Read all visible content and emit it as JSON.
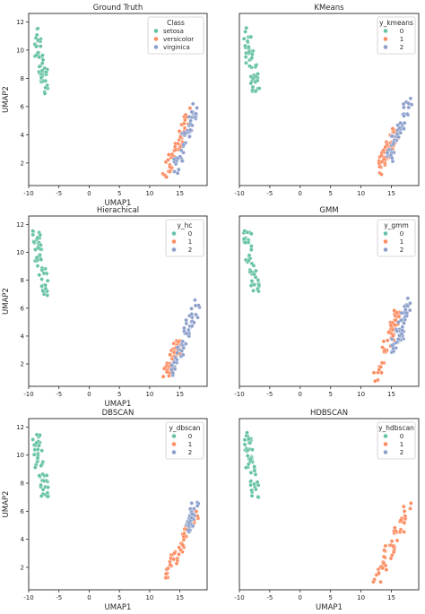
{
  "palette": [
    "#66c2a5",
    "#fc8d62",
    "#8da0cb"
  ],
  "chart_data": [
    {
      "type": "scatter",
      "title": "Ground Truth",
      "xlabel": "UMAP1",
      "ylabel": "UMAP2",
      "xlim": [
        -10,
        19.5
      ],
      "ylim": [
        0.4,
        12.6
      ],
      "xticks": [
        -10,
        -5,
        0,
        5,
        10,
        15
      ],
      "yticks": [
        2,
        4,
        6,
        8,
        10,
        12
      ],
      "legend": {
        "title": "Class",
        "position": "upper right",
        "labels": [
          "setosa",
          "versicolor",
          "virginica"
        ]
      },
      "clusters": [
        {
          "label": "setosa",
          "color": "#66c2a5",
          "range": [
            -8.7,
            11.6,
            -6.9,
            6.9
          ]
        },
        {
          "label": "versicolor",
          "color": "#fc8d62",
          "range": [
            12.5,
            1.1,
            16.6,
            5.6
          ]
        },
        {
          "label": "virginica",
          "color": "#8da0cb",
          "range": [
            14.3,
            1.5,
            18.0,
            6.4
          ]
        }
      ]
    },
    {
      "type": "scatter",
      "title": "KMeans",
      "xlabel": "",
      "ylabel": "",
      "xlim": [
        -10,
        19.5
      ],
      "ylim": [
        0.4,
        12.6
      ],
      "xticks": [
        -10,
        -5,
        0,
        5,
        10,
        15
      ],
      "yticks": [],
      "legend": {
        "title": "y_kmeans",
        "position": "upper right",
        "labels": [
          "0",
          "1",
          "2"
        ]
      },
      "clusters": [
        {
          "label": "0",
          "color": "#66c2a5",
          "range": [
            -8.7,
            11.6,
            -6.9,
            6.9
          ]
        },
        {
          "label": "1",
          "color": "#fc8d62",
          "range": [
            12.5,
            1.1,
            15.8,
            4.4
          ]
        },
        {
          "label": "2",
          "color": "#8da0cb",
          "range": [
            14.6,
            2.4,
            18.0,
            6.4
          ]
        }
      ]
    },
    {
      "type": "scatter",
      "title": "Hierachical",
      "xlabel": "UMAP1",
      "ylabel": "UMAP2",
      "xlim": [
        -10,
        19.5
      ],
      "ylim": [
        0.4,
        12.6
      ],
      "xticks": [
        -10,
        -5,
        0,
        5,
        10,
        15
      ],
      "yticks": [
        2,
        4,
        6,
        8,
        10,
        12
      ],
      "legend": {
        "title": "y_hc",
        "position": "upper right",
        "labels": [
          "0",
          "1",
          "2"
        ]
      },
      "clusters": [
        {
          "label": "0",
          "color": "#66c2a5",
          "range": [
            -8.7,
            11.6,
            -6.9,
            6.9
          ]
        },
        {
          "label": "1",
          "color": "#fc8d62",
          "range": [
            12.5,
            1.1,
            14.9,
            3.6
          ]
        },
        {
          "label": "2",
          "color": "#8da0cb",
          "range": [
            13.8,
            1.6,
            18.0,
            6.4
          ]
        }
      ]
    },
    {
      "type": "scatter",
      "title": "GMM",
      "xlabel": "",
      "ylabel": "",
      "xlim": [
        -10,
        19.5
      ],
      "ylim": [
        0.4,
        12.6
      ],
      "xticks": [
        -10,
        -5,
        0,
        5,
        10,
        15
      ],
      "yticks": [],
      "legend": {
        "title": "y_gmm",
        "position": "upper right",
        "labels": [
          "0",
          "1",
          "2"
        ]
      },
      "clusters": [
        {
          "label": "0",
          "color": "#66c2a5",
          "range": [
            -8.7,
            11.6,
            -6.9,
            6.9
          ]
        },
        {
          "label": "1",
          "color": "#fc8d62",
          "range": [
            12.5,
            1.1,
            16.2,
            5.8
          ]
        },
        {
          "label": "2",
          "color": "#8da0cb",
          "range": [
            15.4,
            3.0,
            18.0,
            6.4
          ]
        }
      ]
    },
    {
      "type": "scatter",
      "title": "DBSCAN",
      "xlabel": "UMAP1",
      "ylabel": "UMAP2",
      "xlim": [
        -10,
        19.5
      ],
      "ylim": [
        0.4,
        12.6
      ],
      "xticks": [
        -10,
        -5,
        0,
        5,
        10,
        15
      ],
      "yticks": [
        2,
        4,
        6,
        8,
        10,
        12
      ],
      "legend": {
        "title": "y_dbscan",
        "position": "upper right",
        "labels": [
          "0",
          "1",
          "2"
        ]
      },
      "clusters": [
        {
          "label": "0",
          "color": "#66c2a5",
          "range": [
            -8.7,
            11.6,
            -6.9,
            6.9
          ]
        },
        {
          "label": "1",
          "color": "#fc8d62",
          "range": [
            12.5,
            1.1,
            18.0,
            6.4
          ]
        },
        {
          "label": "2",
          "color": "#8da0cb",
          "range": [
            16.2,
            4.8,
            17.6,
            6.4
          ]
        }
      ]
    },
    {
      "type": "scatter",
      "title": "HDBSCAN",
      "xlabel": "UMAP1",
      "ylabel": "",
      "xlim": [
        -10,
        19.5
      ],
      "ylim": [
        0.4,
        12.6
      ],
      "xticks": [
        -10,
        -5,
        0,
        5,
        10,
        15
      ],
      "yticks": [],
      "legend": {
        "title": "y_hdbscan",
        "position": "upper right",
        "labels": [
          "0",
          "1",
          "2"
        ]
      },
      "clusters": [
        {
          "label": "0",
          "color": "#66c2a5",
          "range": [
            -8.7,
            11.6,
            -6.9,
            6.9
          ]
        },
        {
          "label": "1",
          "color": "#fc8d62",
          "range": [
            12.5,
            1.1,
            18.0,
            6.4
          ]
        }
      ]
    }
  ]
}
